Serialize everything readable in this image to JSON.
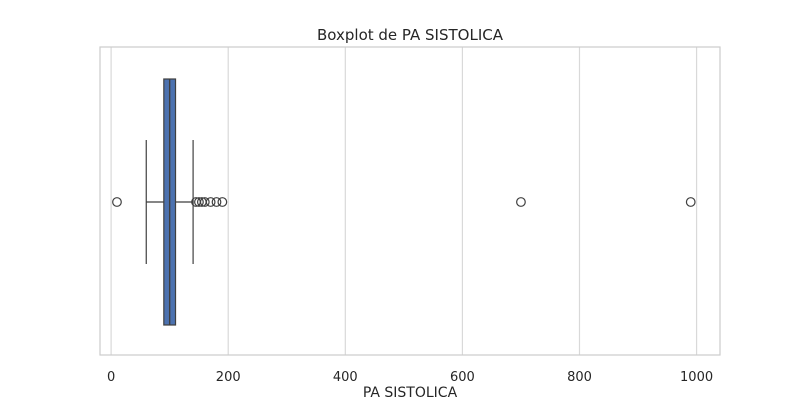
{
  "chart_data": {
    "type": "box",
    "title": "Boxplot de PA SISTOLICA",
    "xlabel": "PA SISTOLICA",
    "ylabel": "",
    "orientation": "horizontal",
    "xlim": [
      -19,
      1040
    ],
    "xticks": [
      0,
      200,
      400,
      600,
      800,
      1000
    ],
    "tick_labels": [
      "0",
      "200",
      "400",
      "600",
      "800",
      "1000"
    ],
    "grid": true,
    "colors": {
      "box_fill": "#4c72b0",
      "line": "#3f3f3f",
      "grid": "#d9d9d9",
      "spine": "#cccccc"
    },
    "box": {
      "whisker_low": 60,
      "q1": 90,
      "median": 100,
      "q3": 110,
      "whisker_high": 140
    },
    "outliers": [
      10,
      145,
      150,
      155,
      160,
      170,
      180,
      190,
      700,
      990
    ]
  }
}
